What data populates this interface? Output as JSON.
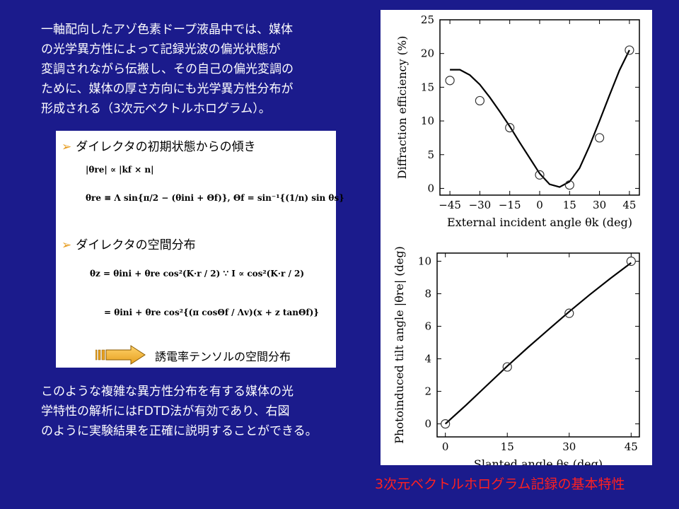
{
  "intro": {
    "lines": [
      "一軸配向したアゾ色素ドープ液晶中では、媒体",
      "の光学異方性によって記録光波の偏光状態が",
      "変調されながら伝搬し、その自己の偏光変調の",
      "ために、媒体の厚さ方向にも光学異方性分布が",
      "形成される（3次元ベクトルホログラム）。"
    ]
  },
  "formula_panel": {
    "bullet1": "ダイレクタの初期状態からの傾き",
    "bullet2": "ダイレクタの空間分布",
    "eq1": "|θre| ∝ |kf × n|",
    "eq2": "θre ≡ Λ sin{π/2 − (θini + Θf)},   Θf = sin⁻¹{(1/n) sin θs}",
    "eq3": "θz = θini + θre cos²(K·r / 2)        ∵ I ∝ cos²(K·r / 2)",
    "eq4": "= θini + θre cos²{(π cosΘf / Λv)(x + z tanΘf)}",
    "arrow_text": "誘電率テンソルの空間分布"
  },
  "outro": {
    "lines": [
      "このような複雑な異方性分布を有する媒体の光",
      "学特性の解析にはFDTD法が有効であり、右図",
      "のように実験結果を正確に説明することができる。"
    ]
  },
  "caption": "3次元ベクトルホログラム記録の基本特性",
  "chart_data": [
    {
      "type": "scatter",
      "title": "",
      "xlabel": "External incident angle θk (deg)",
      "ylabel": "Diffraction efficiency (%)",
      "xlim": [
        -50,
        50
      ],
      "ylim": [
        -1,
        25
      ],
      "xticks": [
        -45,
        -30,
        -15,
        0,
        15,
        30,
        45
      ],
      "yticks": [
        0,
        5,
        10,
        15,
        20,
        25
      ],
      "measured": {
        "x": [
          -45,
          -30,
          -15,
          0,
          15,
          30,
          45
        ],
        "y": [
          16,
          13,
          9,
          2,
          0.5,
          7.5,
          20.5
        ]
      },
      "calculated": {
        "x": [
          -45,
          -40,
          -35,
          -30,
          -25,
          -20,
          -15,
          -10,
          -5,
          0,
          5,
          10,
          15,
          20,
          25,
          30,
          35,
          40,
          45
        ],
        "y": [
          17.6,
          17.6,
          16.8,
          15.4,
          13.5,
          11.4,
          9.2,
          6.8,
          4.5,
          2.2,
          0.6,
          0.2,
          1.0,
          3.0,
          6.3,
          10.0,
          13.8,
          17.5,
          20.5
        ]
      }
    },
    {
      "type": "scatter",
      "title": "",
      "xlabel": "Slanted angle θs (deg)",
      "ylabel": "Photoinduced tilt angle |θre| (deg)",
      "xlim": [
        -2,
        47
      ],
      "ylim": [
        -0.8,
        10.5
      ],
      "xticks": [
        0,
        15,
        30,
        45
      ],
      "yticks": [
        0,
        2,
        4,
        6,
        8,
        10
      ],
      "measured": {
        "x": [
          0,
          15,
          30,
          45
        ],
        "y": [
          0,
          3.5,
          6.8,
          10
        ]
      },
      "calculated": {
        "x": [
          0,
          5,
          10,
          15,
          20,
          25,
          30,
          35,
          40,
          45
        ],
        "y": [
          0,
          1.15,
          2.35,
          3.55,
          4.7,
          5.8,
          6.9,
          7.95,
          8.95,
          9.9
        ]
      }
    }
  ]
}
